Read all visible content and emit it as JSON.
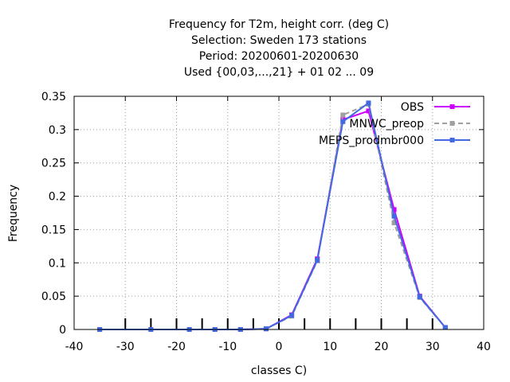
{
  "chart_data": {
    "type": "line",
    "title_lines": [
      "Frequency  for T2m, height corr. (deg C)",
      "Selection: Sweden    173 stations",
      "Period: 20200601-20200630",
      "Used {00,03,...,21} + 01 02 ... 09"
    ],
    "xlabel": "classes C)",
    "ylabel": "Frequency",
    "xlim": [
      -40,
      40
    ],
    "ylim": [
      0,
      0.35
    ],
    "xticks": [
      -40,
      -30,
      -20,
      -10,
      0,
      10,
      20,
      30,
      40
    ],
    "yticks": [
      0,
      0.05,
      0.1,
      0.15,
      0.2,
      0.25,
      0.3,
      0.35
    ],
    "xtick_labels": [
      "-40",
      "-30",
      "-20",
      "-10",
      "0",
      "10",
      "20",
      "30",
      "40"
    ],
    "ytick_labels": [
      "0",
      "0.05",
      "0.1",
      "0.15",
      "0.2",
      "0.25",
      "0.3",
      "0.35"
    ],
    "class_limits": [
      -30,
      -25,
      -20,
      -15,
      -10,
      -5,
      0,
      5,
      10,
      15,
      20,
      25,
      30
    ],
    "grid": true,
    "legend_position": "top-right",
    "series": [
      {
        "name": "OBS",
        "color": "#cc00ff",
        "dashed": false,
        "x": [
          -35,
          -25,
          -17.5,
          -12.5,
          -7.5,
          -2.5,
          2.5,
          7.5,
          12.5,
          17.5,
          22.5,
          27.5,
          32.5
        ],
        "y": [
          0,
          0,
          0,
          0,
          0,
          0.001,
          0.022,
          0.106,
          0.315,
          0.328,
          0.18,
          0.05,
          0.003
        ]
      },
      {
        "name": "MNWC_preop",
        "color": "#a0a0a0",
        "dashed": true,
        "x": [
          -35,
          -25,
          -17.5,
          -12.5,
          -7.5,
          -2.5,
          2.5,
          7.5,
          12.5,
          17.5,
          22.5,
          27.5,
          32.5
        ],
        "y": [
          0,
          0,
          0,
          0,
          0,
          0.001,
          0.02,
          0.103,
          0.322,
          0.338,
          0.16,
          0.048,
          0.003
        ]
      },
      {
        "name": "MEPS_prodmbr000",
        "color": "#4169e1",
        "dashed": false,
        "x": [
          -35,
          -25,
          -17.5,
          -12.5,
          -7.5,
          -2.5,
          2.5,
          7.5,
          12.5,
          17.5,
          22.5,
          27.5,
          32.5
        ],
        "y": [
          0,
          0,
          0,
          0,
          0,
          0.001,
          0.021,
          0.104,
          0.312,
          0.34,
          0.17,
          0.049,
          0.003
        ]
      }
    ]
  }
}
